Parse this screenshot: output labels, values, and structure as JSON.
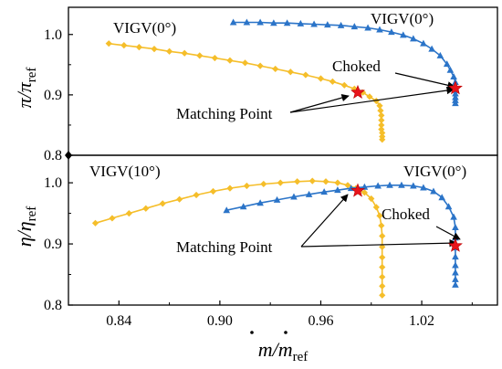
{
  "chart_data": [
    {
      "type": "line",
      "panel": "top",
      "ylabel": {
        "main": "π/π",
        "sub": "ref"
      },
      "xlim": [
        0.81,
        1.065
      ],
      "ylim": [
        0.8,
        1.045
      ],
      "yticks": [
        0.8,
        0.9,
        1.0
      ],
      "ytick_labels": [
        "0.8",
        "0.9",
        "1.0"
      ],
      "grid": false,
      "series": [
        {
          "color": "#F5BE2A",
          "marker": "diamond",
          "x": [
            0.834,
            0.843,
            0.852,
            0.861,
            0.87,
            0.879,
            0.888,
            0.897,
            0.906,
            0.915,
            0.924,
            0.933,
            0.942,
            0.951,
            0.96,
            0.967,
            0.974,
            0.98,
            0.985,
            0.989,
            0.993,
            0.995,
            0.9955,
            0.996,
            0.996,
            0.996,
            0.996,
            0.9965,
            0.9965,
            0.9965
          ],
          "y": [
            0.985,
            0.982,
            0.979,
            0.976,
            0.972,
            0.969,
            0.965,
            0.961,
            0.957,
            0.953,
            0.948,
            0.943,
            0.938,
            0.933,
            0.927,
            0.922,
            0.916,
            0.91,
            0.904,
            0.897,
            0.89,
            0.882,
            0.874,
            0.866,
            0.858,
            0.85,
            0.843,
            0.837,
            0.831,
            0.826
          ]
        },
        {
          "color": "#2B74C8",
          "marker": "triangle",
          "x": [
            0.908,
            0.916,
            0.924,
            0.932,
            0.94,
            0.948,
            0.956,
            0.964,
            0.972,
            0.98,
            0.988,
            0.995,
            1.002,
            1.009,
            1.015,
            1.021,
            1.026,
            1.031,
            1.035,
            1.037,
            1.039,
            1.04,
            1.04,
            1.04,
            1.04,
            1.04,
            1.04,
            1.04
          ],
          "y": [
            1.02,
            1.02,
            1.02,
            1.019,
            1.019,
            1.018,
            1.017,
            1.016,
            1.015,
            1.013,
            1.011,
            1.008,
            1.004,
            0.999,
            0.993,
            0.985,
            0.976,
            0.965,
            0.951,
            0.941,
            0.93,
            0.921,
            0.914,
            0.908,
            0.902,
            0.896,
            0.891,
            0.886
          ]
        }
      ],
      "matching_points": [
        {
          "x": 0.982,
          "y": 0.904
        },
        {
          "x": 1.04,
          "y": 0.911
        }
      ]
    },
    {
      "type": "line",
      "panel": "bottom",
      "ylabel": {
        "main": "η/η",
        "sub": "ref"
      },
      "xlabel": {
        "main": "m/m",
        "sub": "ref"
      },
      "xlim": [
        0.81,
        1.065
      ],
      "ylim": [
        0.8,
        1.045
      ],
      "xticks": [
        0.84,
        0.9,
        0.96,
        1.02
      ],
      "xtick_labels": [
        "0.84",
        "0.90",
        "0.96",
        "1.02"
      ],
      "yticks": [
        0.8,
        0.9,
        1.0
      ],
      "ytick_labels": [
        "0.8",
        "0.9",
        "1.0"
      ],
      "grid": false,
      "series": [
        {
          "color": "#F5BE2A",
          "marker": "diamond",
          "x": [
            0.826,
            0.836,
            0.846,
            0.856,
            0.866,
            0.876,
            0.886,
            0.896,
            0.906,
            0.916,
            0.926,
            0.936,
            0.946,
            0.955,
            0.963,
            0.97,
            0.976,
            0.981,
            0.986,
            0.99,
            0.993,
            0.995,
            0.996,
            0.9965,
            0.9965,
            0.9965,
            0.9965,
            0.9965,
            0.9965,
            0.9965
          ],
          "y": [
            0.934,
            0.942,
            0.95,
            0.958,
            0.966,
            0.973,
            0.98,
            0.986,
            0.991,
            0.995,
            0.998,
            1.0,
            1.002,
            1.003,
            1.002,
            1.0,
            0.996,
            0.991,
            0.984,
            0.974,
            0.96,
            0.946,
            0.93,
            0.913,
            0.895,
            0.878,
            0.862,
            0.846,
            0.831,
            0.816
          ]
        },
        {
          "color": "#2B74C8",
          "marker": "triangle",
          "x": [
            0.904,
            0.914,
            0.924,
            0.934,
            0.944,
            0.953,
            0.962,
            0.97,
            0.978,
            0.986,
            0.994,
            1.001,
            1.008,
            1.015,
            1.021,
            1.027,
            1.032,
            1.036,
            1.039,
            1.04,
            1.04,
            1.04,
            1.04,
            1.04,
            1.04,
            1.04,
            1.04
          ],
          "y": [
            0.955,
            0.961,
            0.967,
            0.972,
            0.977,
            0.981,
            0.985,
            0.988,
            0.991,
            0.993,
            0.995,
            0.996,
            0.996,
            0.995,
            0.992,
            0.986,
            0.976,
            0.961,
            0.944,
            0.927,
            0.91,
            0.894,
            0.879,
            0.865,
            0.853,
            0.842,
            0.833
          ]
        }
      ],
      "matching_points": [
        {
          "x": 0.982,
          "y": 0.987
        },
        {
          "x": 1.04,
          "y": 0.897
        }
      ]
    }
  ],
  "annotations": {
    "top": {
      "left_label": "VIGV(0°)",
      "right_label": "VIGV(0°)",
      "choked": "Choked",
      "matching": "Matching Point"
    },
    "bottom": {
      "left_label": "VIGV(10°)",
      "right_label": "VIGV(0°)",
      "choked": "Choked",
      "matching": "Matching Point"
    }
  },
  "colors": {
    "yellow": "#F5BE2A",
    "blue": "#2B74C8",
    "star": "#E8141B"
  }
}
